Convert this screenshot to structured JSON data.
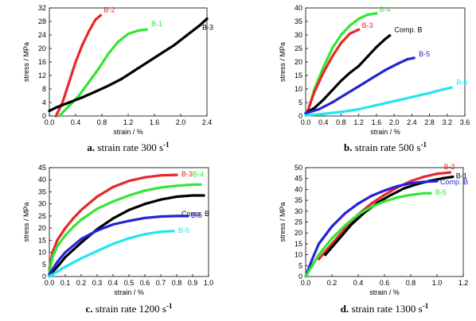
{
  "colors": {
    "red": "#e8262b",
    "green": "#33e633",
    "black": "#000000",
    "blue": "#2323d6",
    "cyan": "#22e6ee"
  },
  "chart_data": [
    {
      "type": "line",
      "panel": "a.",
      "caption": "strain rate 300 s",
      "caption_sup": "-1",
      "xlabel": "strain / %",
      "ylabel": "stress / MPa",
      "xlim": [
        0,
        2.4
      ],
      "ylim": [
        0,
        32
      ],
      "xticks": [
        "0.0",
        "0.4",
        "0.8",
        "1.2",
        "1.6",
        "2.0",
        "2.4"
      ],
      "yticks": [
        "0",
        "4",
        "8",
        "12",
        "16",
        "20",
        "24",
        "28",
        "32"
      ],
      "series": [
        {
          "name": "B-2",
          "color": "red",
          "x": [
            0.1,
            0.2,
            0.3,
            0.4,
            0.5,
            0.6,
            0.7,
            0.78
          ],
          "y": [
            0,
            4,
            10,
            16,
            21,
            25,
            28.5,
            29.8
          ]
        },
        {
          "name": "B-1",
          "color": "green",
          "x": [
            0.15,
            0.3,
            0.45,
            0.6,
            0.75,
            0.9,
            1.05,
            1.2,
            1.35,
            1.48
          ],
          "y": [
            0,
            3,
            6,
            10,
            14,
            18.5,
            22,
            24.3,
            25.3,
            25.6
          ]
        },
        {
          "name": "B-3",
          "color": "black",
          "x": [
            0.0,
            0.1,
            0.3,
            0.5,
            0.7,
            0.9,
            1.1,
            1.3,
            1.5,
            1.7,
            1.9,
            2.1,
            2.3,
            2.4
          ],
          "y": [
            1.5,
            2.5,
            4,
            5.5,
            7.2,
            9,
            11,
            13.5,
            16,
            18.5,
            21,
            24,
            27,
            28.8
          ]
        }
      ]
    },
    {
      "type": "line",
      "panel": "b.",
      "caption": "strain rate 500 s",
      "caption_sup": "-1",
      "xlabel": "strain / %",
      "ylabel": "stress / MPa",
      "xlim": [
        0,
        3.6
      ],
      "ylim": [
        0,
        40
      ],
      "xticks": [
        "0.0",
        "0.4",
        "0.8",
        "1.2",
        "1.6",
        "2.0",
        "2.4",
        "2.8",
        "3.2",
        "3.6"
      ],
      "yticks": [
        "0",
        "5",
        "10",
        "15",
        "20",
        "25",
        "30",
        "35",
        "40"
      ],
      "series": [
        {
          "name": "B-4",
          "color": "green",
          "x": [
            0.05,
            0.2,
            0.4,
            0.6,
            0.8,
            1.0,
            1.2,
            1.4,
            1.6
          ],
          "y": [
            2,
            10,
            18,
            25,
            30,
            33.5,
            36,
            37.5,
            38
          ]
        },
        {
          "name": "B-3",
          "color": "red",
          "x": [
            0.05,
            0.2,
            0.4,
            0.6,
            0.8,
            1.0,
            1.2
          ],
          "y": [
            2,
            9,
            16,
            22,
            27,
            30.5,
            32
          ]
        },
        {
          "name": "Comp. B",
          "color": "black",
          "x": [
            0.0,
            0.2,
            0.4,
            0.6,
            0.8,
            1.0,
            1.2,
            1.4,
            1.6,
            1.8,
            1.9
          ],
          "y": [
            1,
            3,
            6,
            9.5,
            13,
            16,
            18.5,
            22,
            25.5,
            28.5,
            29.8
          ]
        },
        {
          "name": "B-5",
          "color": "blue",
          "x": [
            0.0,
            0.3,
            0.6,
            0.9,
            1.2,
            1.5,
            1.8,
            2.1,
            2.3,
            2.45
          ],
          "y": [
            1,
            2.5,
            5,
            8,
            11,
            14,
            17,
            19.5,
            21,
            21.5
          ]
        },
        {
          "name": "B-6",
          "color": "cyan",
          "x": [
            0.0,
            0.4,
            0.8,
            1.2,
            1.6,
            2.0,
            2.4,
            2.8,
            3.1,
            3.3
          ],
          "y": [
            0.2,
            0.8,
            1.5,
            2.5,
            4,
            5.5,
            7,
            8.5,
            9.8,
            10.5
          ]
        }
      ]
    },
    {
      "type": "line",
      "panel": "c.",
      "caption": "strain rate 1200 s",
      "caption_sup": "-1",
      "xlabel": "strain / %",
      "ylabel": "stress / MPa",
      "xlim": [
        0,
        1.0
      ],
      "ylim": [
        0,
        45
      ],
      "xticks": [
        "0.0",
        "0.1",
        "0.2",
        "0.3",
        "0.4",
        "0.5",
        "0.6",
        "0.7",
        "0.8",
        "0.9",
        "1.0"
      ],
      "yticks": [
        "0",
        "5",
        "10",
        "15",
        "20",
        "25",
        "30",
        "35",
        "40",
        "45"
      ],
      "series": [
        {
          "name": "B-3",
          "color": "red",
          "x": [
            0.0,
            0.02,
            0.05,
            0.1,
            0.15,
            0.2,
            0.3,
            0.4,
            0.5,
            0.6,
            0.7,
            0.8
          ],
          "y": [
            3,
            10,
            15,
            20,
            24,
            27.5,
            33,
            37,
            39.5,
            41,
            41.8,
            42
          ]
        },
        {
          "name": "B-4",
          "color": "green",
          "x": [
            0.0,
            0.02,
            0.05,
            0.1,
            0.15,
            0.2,
            0.3,
            0.4,
            0.5,
            0.6,
            0.7,
            0.8,
            0.9,
            0.95
          ],
          "y": [
            2,
            8,
            12.5,
            17,
            20.5,
            23.5,
            28,
            31,
            33.5,
            35.5,
            36.8,
            37.5,
            38,
            38
          ]
        },
        {
          "name": "Comp. B",
          "color": "black",
          "x": [
            0.0,
            0.05,
            0.1,
            0.15,
            0.2,
            0.3,
            0.4,
            0.5,
            0.6,
            0.7,
            0.8,
            0.9,
            0.97
          ],
          "y": [
            0.5,
            4,
            8,
            11,
            14,
            19.5,
            24,
            27.5,
            30,
            31.8,
            33,
            33.5,
            33.5
          ]
        },
        {
          "name": "B-5",
          "color": "blue",
          "x": [
            0.0,
            0.05,
            0.1,
            0.2,
            0.3,
            0.4,
            0.5,
            0.6,
            0.7,
            0.8,
            0.87
          ],
          "y": [
            1,
            6,
            10,
            15.5,
            19,
            21.5,
            23,
            24.2,
            24.8,
            25,
            25
          ]
        },
        {
          "name": "B-6",
          "color": "cyan",
          "x": [
            0.0,
            0.05,
            0.1,
            0.2,
            0.3,
            0.4,
            0.5,
            0.6,
            0.7,
            0.78
          ],
          "y": [
            0,
            2,
            4,
            7.5,
            10.5,
            13.5,
            15.8,
            17.5,
            18.5,
            18.8
          ]
        }
      ]
    },
    {
      "type": "line",
      "panel": "d.",
      "caption": "strain rate 1300 s",
      "caption_sup": "-1",
      "xlabel": "strain / %",
      "ylabel": "stress / MPa",
      "xlim": [
        0,
        1.2
      ],
      "ylim": [
        0,
        50
      ],
      "xticks": [
        "0.0",
        "0.2",
        "0.4",
        "0.6",
        "0.8",
        "1.0",
        "1.2"
      ],
      "yticks": [
        "0",
        "5",
        "10",
        "15",
        "20",
        "25",
        "30",
        "35",
        "40",
        "45",
        "50"
      ],
      "series": [
        {
          "name": "B-2",
          "color": "red",
          "x": [
            0.1,
            0.2,
            0.3,
            0.4,
            0.5,
            0.6,
            0.7,
            0.8,
            0.9,
            1.0,
            1.1
          ],
          "y": [
            8,
            15,
            22,
            28.5,
            33.5,
            37.5,
            41,
            43.8,
            45.8,
            47.2,
            47.8
          ]
        },
        {
          "name": "B-1",
          "color": "black",
          "x": [
            0.15,
            0.25,
            0.35,
            0.45,
            0.55,
            0.65,
            0.75,
            0.85,
            0.95,
            1.05,
            1.12
          ],
          "y": [
            10,
            17,
            24,
            29.5,
            34,
            37.5,
            40.5,
            42.5,
            44,
            45.2,
            45.8
          ]
        },
        {
          "name": "Comp. B",
          "color": "blue",
          "x": [
            0.0,
            0.05,
            0.1,
            0.2,
            0.3,
            0.4,
            0.5,
            0.6,
            0.7,
            0.8,
            0.9,
            1.0
          ],
          "y": [
            0,
            8,
            15,
            23,
            29,
            33.5,
            37,
            39.5,
            41.5,
            42.8,
            43.5,
            43.8
          ]
        },
        {
          "name": "B-5",
          "color": "green",
          "x": [
            0.0,
            0.05,
            0.1,
            0.2,
            0.3,
            0.4,
            0.5,
            0.6,
            0.7,
            0.8,
            0.9,
            0.95
          ],
          "y": [
            0,
            5,
            10,
            17.5,
            23.5,
            28.5,
            32,
            34.5,
            36.3,
            37.5,
            38.2,
            38.3
          ]
        }
      ]
    }
  ]
}
